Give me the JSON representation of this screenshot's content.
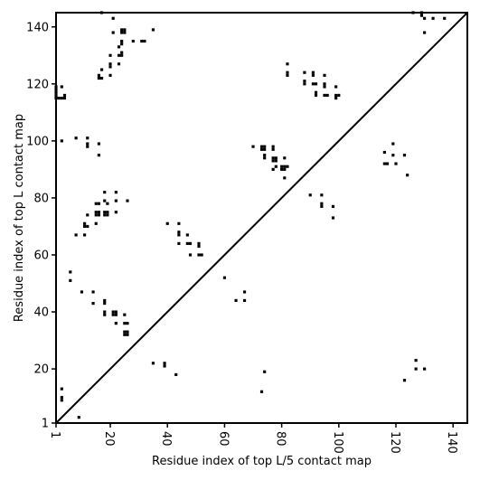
{
  "chart_data": {
    "type": "scatter",
    "title": "",
    "xlabel": "Residue index of top L/5 contact map",
    "ylabel": "Residue index of top L contact map",
    "xlim": [
      1,
      145
    ],
    "ylim": [
      1,
      145
    ],
    "xticks": [
      1,
      20,
      40,
      60,
      80,
      100,
      120,
      140
    ],
    "yticks": [
      1,
      20,
      40,
      60,
      80,
      100,
      120,
      140
    ],
    "grid": false,
    "legend": "none",
    "marker": "square",
    "marker_color": "#000000",
    "diagonal_line": true,
    "series": [
      {
        "region": "upper-left (top L)",
        "points": [
          [
            1,
            119
          ],
          [
            1,
            118
          ],
          [
            1,
            117
          ],
          [
            1,
            116
          ],
          [
            1,
            115
          ],
          [
            2,
            115
          ],
          [
            3,
            115
          ],
          [
            4,
            115
          ],
          [
            4,
            116
          ],
          [
            3,
            119
          ],
          [
            3,
            100
          ],
          [
            8,
            101
          ],
          [
            12,
            101
          ],
          [
            12,
            99
          ],
          [
            12,
            98
          ],
          [
            16,
            99
          ],
          [
            16,
            95
          ],
          [
            16,
            122
          ],
          [
            17,
            122
          ],
          [
            16,
            123
          ],
          [
            17,
            125
          ],
          [
            20,
            126
          ],
          [
            20,
            127
          ],
          [
            20,
            123
          ],
          [
            20,
            130
          ],
          [
            21,
            143
          ],
          [
            21,
            138
          ],
          [
            24,
            139
          ],
          [
            24,
            138
          ],
          [
            25,
            139
          ],
          [
            25,
            138
          ],
          [
            23,
            133
          ],
          [
            24,
            135
          ],
          [
            24,
            134
          ],
          [
            24,
            131
          ],
          [
            23,
            130
          ],
          [
            24,
            130
          ],
          [
            23,
            127
          ],
          [
            17,
            145
          ],
          [
            28,
            135
          ],
          [
            31,
            135
          ],
          [
            32,
            135
          ],
          [
            35,
            139
          ],
          [
            18,
            82
          ],
          [
            22,
            82
          ],
          [
            15,
            78
          ],
          [
            16,
            78
          ],
          [
            18,
            79
          ],
          [
            19,
            78
          ],
          [
            22,
            79
          ],
          [
            26,
            79
          ],
          [
            15,
            75
          ],
          [
            16,
            75
          ],
          [
            15,
            74
          ],
          [
            16,
            74
          ],
          [
            18,
            75
          ],
          [
            19,
            75
          ],
          [
            18,
            74
          ],
          [
            19,
            74
          ],
          [
            22,
            75
          ],
          [
            15,
            71
          ],
          [
            12,
            74
          ],
          [
            11,
            71
          ],
          [
            12,
            70
          ],
          [
            11,
            70
          ],
          [
            8,
            67
          ],
          [
            11,
            67
          ],
          [
            6,
            54
          ],
          [
            6,
            51
          ],
          [
            10,
            47
          ],
          [
            14,
            47
          ],
          [
            14,
            43
          ],
          [
            18,
            44
          ],
          [
            18,
            43
          ],
          [
            18,
            40
          ],
          [
            18,
            39
          ],
          [
            21,
            40
          ],
          [
            22,
            40
          ],
          [
            21,
            39
          ],
          [
            22,
            39
          ],
          [
            25,
            39
          ],
          [
            22,
            36
          ],
          [
            25,
            36
          ],
          [
            26,
            36
          ],
          [
            25,
            33
          ],
          [
            26,
            33
          ],
          [
            25,
            32
          ],
          [
            26,
            32
          ],
          [
            40,
            71
          ],
          [
            44,
            71
          ],
          [
            44,
            68
          ],
          [
            44,
            67
          ],
          [
            47,
            67
          ],
          [
            44,
            64
          ],
          [
            47,
            64
          ],
          [
            48,
            64
          ],
          [
            51,
            64
          ],
          [
            51,
            63
          ],
          [
            48,
            60
          ],
          [
            51,
            60
          ],
          [
            52,
            60
          ],
          [
            60,
            52
          ],
          [
            64,
            44
          ],
          [
            67,
            44
          ],
          [
            67,
            47
          ],
          [
            70,
            98
          ],
          [
            73,
            98
          ],
          [
            74,
            98
          ],
          [
            73,
            97
          ],
          [
            74,
            97
          ],
          [
            77,
            98
          ],
          [
            77,
            97
          ],
          [
            74,
            95
          ],
          [
            74,
            94
          ],
          [
            77,
            94
          ],
          [
            78,
            94
          ],
          [
            77,
            93
          ],
          [
            78,
            93
          ],
          [
            81,
            94
          ],
          [
            78,
            91
          ],
          [
            80,
            91
          ],
          [
            81,
            91
          ],
          [
            82,
            91
          ],
          [
            77,
            90
          ],
          [
            80,
            90
          ],
          [
            81,
            90
          ],
          [
            81,
            87
          ],
          [
            82,
            127
          ],
          [
            82,
            124
          ],
          [
            82,
            123
          ],
          [
            88,
            124
          ],
          [
            88,
            121
          ],
          [
            88,
            120
          ],
          [
            91,
            124
          ],
          [
            91,
            123
          ],
          [
            91,
            120
          ],
          [
            92,
            120
          ],
          [
            92,
            117
          ],
          [
            92,
            116
          ],
          [
            95,
            123
          ],
          [
            95,
            120
          ],
          [
            95,
            119
          ],
          [
            95,
            116
          ],
          [
            96,
            116
          ],
          [
            99,
            119
          ],
          [
            99,
            116
          ],
          [
            99,
            115
          ],
          [
            100,
            116
          ],
          [
            90,
            81
          ],
          [
            94,
            81
          ],
          [
            94,
            78
          ],
          [
            94,
            77
          ],
          [
            98,
            77
          ],
          [
            98,
            73
          ],
          [
            116,
            96
          ],
          [
            116,
            92
          ],
          [
            117,
            92
          ],
          [
            119,
            99
          ],
          [
            119,
            95
          ],
          [
            120,
            92
          ],
          [
            123,
            95
          ],
          [
            124,
            88
          ],
          [
            126,
            145
          ],
          [
            129,
            145
          ],
          [
            129,
            144
          ],
          [
            130,
            143
          ],
          [
            133,
            143
          ],
          [
            137,
            143
          ],
          [
            130,
            138
          ]
        ]
      },
      {
        "region": "lower-right (top L/5)",
        "points": [
          [
            35,
            22
          ],
          [
            39,
            22
          ],
          [
            39,
            21
          ],
          [
            43,
            18
          ],
          [
            74,
            19
          ],
          [
            73,
            12
          ],
          [
            123,
            16
          ],
          [
            127,
            23
          ],
          [
            127,
            20
          ],
          [
            130,
            20
          ]
        ]
      },
      {
        "region": "lower-left cluster",
        "points": [
          [
            3,
            13
          ],
          [
            3,
            10
          ],
          [
            3,
            9
          ],
          [
            9,
            3
          ]
        ]
      }
    ]
  }
}
